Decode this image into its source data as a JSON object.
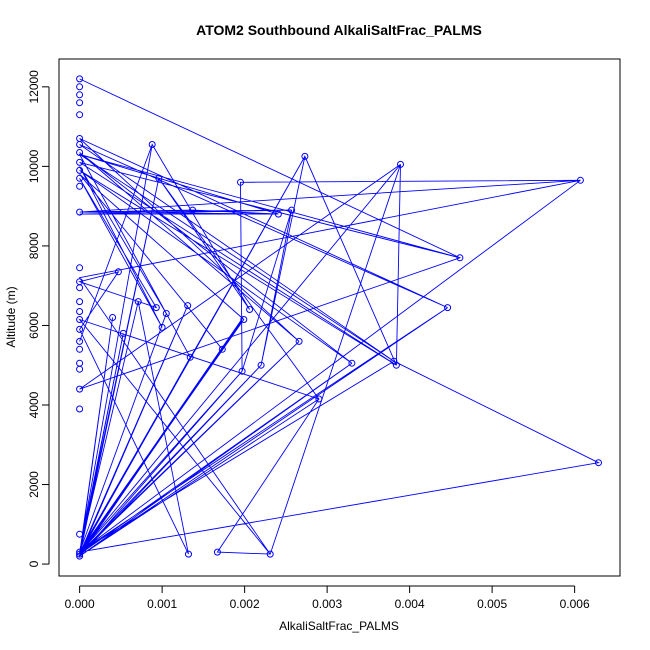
{
  "chart_data": {
    "type": "scatter",
    "title": "ATOM2 Southbound AlkaliSaltFrac_PALMS",
    "xlabel": "AlkaliSaltFrac_PALMS",
    "ylabel": "Altitude (m)",
    "xlim": [
      -0.00025,
      0.00655
    ],
    "ylim": [
      -300,
      12700
    ],
    "xticks": [
      0,
      0.001,
      0.002,
      0.003,
      0.004,
      0.005,
      0.006
    ],
    "xtick_labels": [
      "0.000",
      "0.001",
      "0.002",
      "0.003",
      "0.004",
      "0.005",
      "0.006"
    ],
    "yticks": [
      0,
      2000,
      4000,
      6000,
      8000,
      10000,
      12000
    ],
    "ytick_labels": [
      "0",
      "2000",
      "4000",
      "6000",
      "8000",
      "10000",
      "12000"
    ],
    "grid": false,
    "legend": "none",
    "series": [
      {
        "color": "#0000ff",
        "points": [
          [
            0.0,
            200
          ],
          [
            0.0,
            250
          ],
          [
            0.0,
            300
          ],
          [
            0.0,
            750
          ],
          [
            0.0,
            3900
          ],
          [
            0.0,
            4400
          ],
          [
            0.0,
            4900
          ],
          [
            0.0,
            5050
          ],
          [
            0.0,
            5400
          ],
          [
            0.0,
            5600
          ],
          [
            0.0,
            5900
          ],
          [
            0.0,
            6150
          ],
          [
            0.0,
            6350
          ],
          [
            0.0,
            6600
          ],
          [
            0.0,
            6950
          ],
          [
            0.0,
            7100
          ],
          [
            0.0,
            7450
          ],
          [
            0.0,
            8850
          ],
          [
            0.0,
            9500
          ],
          [
            0.0,
            9700
          ],
          [
            0.0,
            9900
          ],
          [
            0.0,
            10100
          ],
          [
            0.0,
            10350
          ],
          [
            0.0,
            10550
          ],
          [
            0.0,
            10700
          ],
          [
            0.0,
            11300
          ],
          [
            0.0,
            11600
          ],
          [
            0.0,
            11800
          ],
          [
            0.0,
            12000
          ],
          [
            0.0,
            12200
          ],
          [
            0.0004,
            6200
          ],
          [
            0.00047,
            7350
          ],
          [
            0.00053,
            5800
          ],
          [
            0.00071,
            6600
          ],
          [
            0.00088,
            10550
          ],
          [
            0.00093,
            6450
          ],
          [
            0.00096,
            9700
          ],
          [
            0.001,
            5950
          ],
          [
            0.00105,
            6300
          ],
          [
            0.00131,
            6500
          ],
          [
            0.00132,
            250
          ],
          [
            0.00134,
            5200
          ],
          [
            0.00137,
            8900
          ],
          [
            0.00167,
            300
          ],
          [
            0.00173,
            5400
          ],
          [
            0.00195,
            9600
          ],
          [
            0.00197,
            4850
          ],
          [
            0.00199,
            6150
          ],
          [
            0.00206,
            6400
          ],
          [
            0.0022,
            5000
          ],
          [
            0.00231,
            250
          ],
          [
            0.00241,
            8800
          ],
          [
            0.00257,
            8900
          ],
          [
            0.00266,
            5600
          ],
          [
            0.00273,
            10250
          ],
          [
            0.0029,
            4150
          ],
          [
            0.0033,
            5050
          ],
          [
            0.00381,
            5100
          ],
          [
            0.00384,
            5000
          ],
          [
            0.00389,
            10050
          ],
          [
            0.00446,
            6450
          ],
          [
            0.00461,
            7700
          ],
          [
            0.00607,
            9650
          ],
          [
            0.00629,
            2550
          ]
        ],
        "path": [
          [
            0.0,
            12200
          ],
          [
            0.00461,
            7700
          ],
          [
            0.0,
            10100
          ],
          [
            0.00384,
            5000
          ],
          [
            0.0,
            9900
          ],
          [
            0.0033,
            5050
          ],
          [
            0.0,
            10350
          ],
          [
            0.00266,
            5600
          ],
          [
            0.0,
            10700
          ],
          [
            0.00446,
            6450
          ],
          [
            0.0,
            10550
          ],
          [
            0.00381,
            5100
          ],
          [
            0.00629,
            2550
          ],
          [
            0.0,
            300
          ],
          [
            0.00088,
            10550
          ],
          [
            0.00206,
            6400
          ],
          [
            0.00096,
            9700
          ],
          [
            0.0029,
            4150
          ],
          [
            0.00167,
            300
          ],
          [
            0.00231,
            250
          ],
          [
            0.00389,
            10050
          ],
          [
            0.00384,
            5000
          ],
          [
            0.00273,
            10250
          ],
          [
            0.0022,
            5000
          ],
          [
            0.00257,
            8900
          ],
          [
            0.00197,
            4850
          ],
          [
            0.00195,
            9600
          ],
          [
            0.00607,
            9650
          ],
          [
            0.0,
            8850
          ],
          [
            0.00241,
            8800
          ],
          [
            0.0,
            8800
          ],
          [
            0.00257,
            8900
          ],
          [
            0.0,
            8850
          ],
          [
            0.00137,
            8900
          ],
          [
            0.00241,
            8800
          ],
          [
            0.0,
            10300
          ],
          [
            0.00134,
            5200
          ],
          [
            0.0,
            250
          ],
          [
            0.00131,
            6500
          ],
          [
            0.0,
            200
          ],
          [
            0.0004,
            6200
          ],
          [
            0.0,
            250
          ],
          [
            0.00053,
            5800
          ],
          [
            0.0,
            300
          ],
          [
            0.00071,
            6600
          ],
          [
            0.00132,
            250
          ],
          [
            0.0,
            5900
          ],
          [
            0.00047,
            7350
          ],
          [
            0.0,
            7100
          ],
          [
            0.00093,
            6450
          ],
          [
            0.0,
            9700
          ],
          [
            0.001,
            5950
          ],
          [
            0.0,
            10000
          ],
          [
            0.00105,
            6300
          ],
          [
            0.0,
            300
          ],
          [
            0.00173,
            5400
          ],
          [
            0.0,
            9800
          ],
          [
            0.00199,
            6150
          ],
          [
            0.0,
            250
          ],
          [
            0.00198,
            6200
          ],
          [
            0.0,
            200
          ],
          [
            0.00196,
            6100
          ],
          [
            0.0,
            280
          ],
          [
            0.00389,
            10050
          ],
          [
            0.0,
            4400
          ],
          [
            0.00461,
            7700
          ],
          [
            0.0,
            10300
          ],
          [
            0.00381,
            5100
          ],
          [
            0.0,
            300
          ],
          [
            0.00446,
            6450
          ],
          [
            0.0,
            200
          ],
          [
            0.0033,
            5050
          ],
          [
            0.0,
            250
          ],
          [
            0.00273,
            10250
          ],
          [
            0.0,
            300
          ],
          [
            0.00607,
            9650
          ],
          [
            0.0,
            7200
          ],
          [
            0.00231,
            250
          ],
          [
            0.0,
            6150
          ],
          [
            0.0029,
            4150
          ],
          [
            0.0,
            200
          ],
          [
            0.0022,
            5000
          ],
          [
            0.0,
            250
          ],
          [
            0.00266,
            5600
          ],
          [
            0.0,
            280
          ],
          [
            0.00197,
            4850
          ],
          [
            0.0,
            200
          ],
          [
            0.00096,
            9700
          ],
          [
            0.0,
            300
          ],
          [
            0.00088,
            10550
          ],
          [
            0.0,
            5600
          ]
        ]
      }
    ]
  }
}
